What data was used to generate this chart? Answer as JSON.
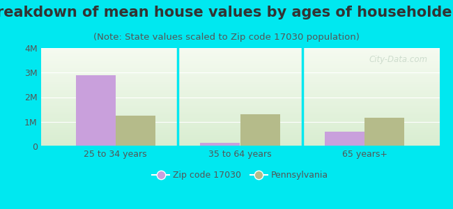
{
  "title": "Breakdown of mean house values by ages of householders",
  "subtitle": "(Note: State values scaled to Zip code 17030 population)",
  "categories": [
    "25 to 34 years",
    "35 to 64 years",
    "65 years+"
  ],
  "zip_values": [
    2900000,
    150000,
    600000
  ],
  "pa_values": [
    1250000,
    1300000,
    1150000
  ],
  "zip_color": "#c9a0dc",
  "pa_color": "#b5bb8a",
  "bg_color": "#00e8f0",
  "ylim": [
    0,
    4000000
  ],
  "yticks": [
    0,
    1000000,
    2000000,
    3000000,
    4000000
  ],
  "ytick_labels": [
    "0",
    "1M",
    "2M",
    "3M",
    "4M"
  ],
  "title_fontsize": 15,
  "subtitle_fontsize": 9.5,
  "tick_fontsize": 9,
  "legend_label_zip": "Zip code 17030",
  "legend_label_pa": "Pennsylvania",
  "watermark": "City-Data.com",
  "bar_width": 0.32,
  "title_color": "#333333",
  "subtitle_color": "#555555",
  "tick_color": "#555555",
  "divider_color": "#00e8f0",
  "grid_color": "#ffffff"
}
